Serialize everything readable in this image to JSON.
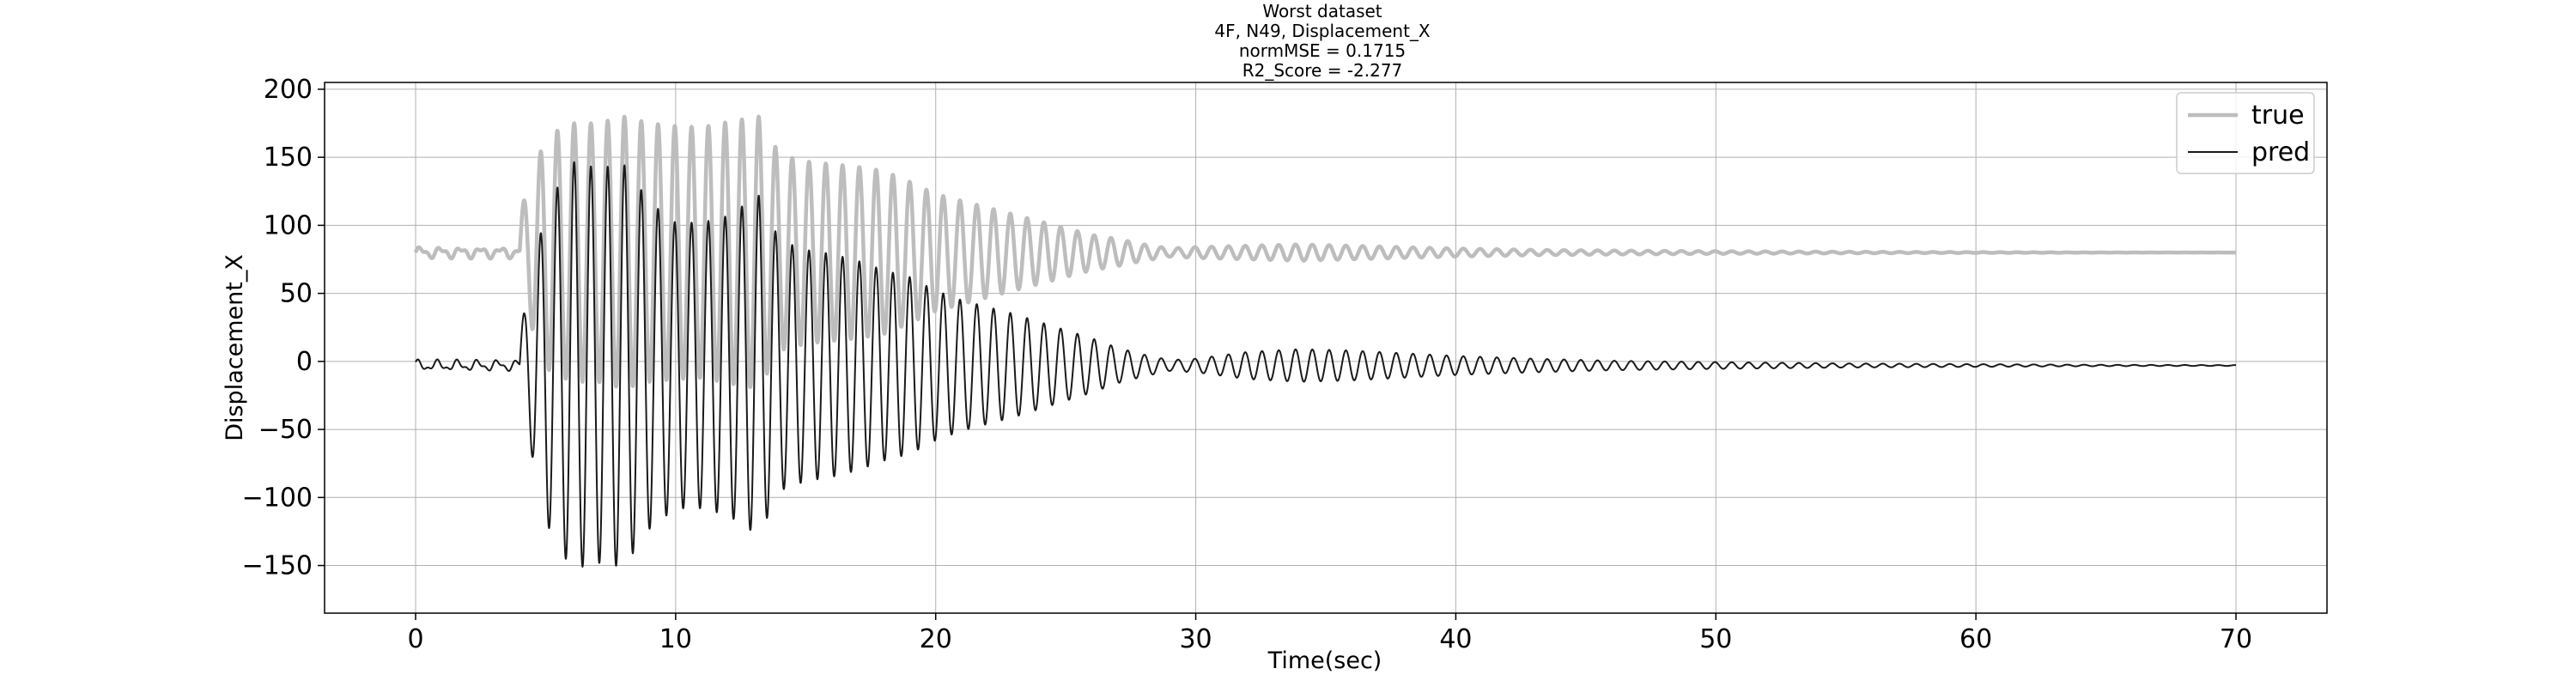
{
  "chart_data": {
    "type": "line",
    "title_lines": [
      "Worst dataset",
      "4F, N49, Displacement_X",
      "normMSE = 0.1715",
      "R2_Score = -2.277"
    ],
    "xlabel": "Time(sec)",
    "ylabel": "Displacement_X",
    "xlim": [
      -3.5,
      73.5
    ],
    "ylim": [
      -185,
      205
    ],
    "xticks": [
      0,
      10,
      20,
      30,
      40,
      50,
      60,
      70
    ],
    "yticks": [
      -150,
      -100,
      -50,
      0,
      50,
      100,
      150,
      200
    ],
    "grid": true,
    "legend_position": "top-right",
    "series": [
      {
        "name": "true",
        "color": "#bdbdbd",
        "offset": 80,
        "envelope": [
          [
            0,
            0
          ],
          [
            3.5,
            3
          ],
          [
            4.2,
            40
          ],
          [
            5,
            85
          ],
          [
            6,
            95
          ],
          [
            7,
            95
          ],
          [
            8,
            100
          ],
          [
            9,
            95
          ],
          [
            10,
            93
          ],
          [
            11,
            92
          ],
          [
            12,
            96
          ],
          [
            13.2,
            100
          ],
          [
            14,
            72
          ],
          [
            15,
            67
          ],
          [
            16,
            65
          ],
          [
            17,
            63
          ],
          [
            18,
            60
          ],
          [
            19,
            52
          ],
          [
            20,
            43
          ],
          [
            21,
            38
          ],
          [
            22,
            33
          ],
          [
            23,
            28
          ],
          [
            24,
            23
          ],
          [
            25,
            18
          ],
          [
            26,
            13
          ],
          [
            27,
            10
          ],
          [
            28,
            6
          ],
          [
            29,
            3
          ],
          [
            30,
            4
          ],
          [
            32,
            5
          ],
          [
            34,
            6
          ],
          [
            36,
            5
          ],
          [
            38,
            4
          ],
          [
            40,
            3
          ],
          [
            43,
            2
          ],
          [
            46,
            1.5
          ],
          [
            50,
            1
          ],
          [
            55,
            0.6
          ],
          [
            60,
            0.3
          ],
          [
            65,
            0.1
          ],
          [
            70,
            0
          ]
        ],
        "noise_until": 4,
        "frequency_hz": 1.55,
        "end_x": 70
      },
      {
        "name": "pred",
        "color": "#1a1a1a",
        "offset": -3,
        "envelope": [
          [
            0,
            0
          ],
          [
            3.5,
            4
          ],
          [
            4.2,
            40
          ],
          [
            5,
            115
          ],
          [
            6,
            150
          ],
          [
            7,
            145
          ],
          [
            8,
            148
          ],
          [
            9,
            120
          ],
          [
            10,
            105
          ],
          [
            11,
            105
          ],
          [
            12,
            110
          ],
          [
            13.2,
            125
          ],
          [
            14,
            92
          ],
          [
            15,
            85
          ],
          [
            16,
            82
          ],
          [
            17,
            77
          ],
          [
            18,
            70
          ],
          [
            19,
            65
          ],
          [
            20,
            55
          ],
          [
            21,
            48
          ],
          [
            22,
            43
          ],
          [
            23,
            38
          ],
          [
            24,
            32
          ],
          [
            25,
            26
          ],
          [
            26,
            20
          ],
          [
            27,
            13
          ],
          [
            28,
            8
          ],
          [
            29,
            4
          ],
          [
            30,
            5
          ],
          [
            32,
            10
          ],
          [
            34,
            12
          ],
          [
            36,
            11
          ],
          [
            38,
            9
          ],
          [
            40,
            7
          ],
          [
            43,
            5
          ],
          [
            46,
            3.5
          ],
          [
            50,
            2.5
          ],
          [
            55,
            1.5
          ],
          [
            60,
            1
          ],
          [
            65,
            0.5
          ],
          [
            70,
            0.3
          ]
        ],
        "noise_until": 4,
        "frequency_hz": 1.55,
        "end_x": 70
      }
    ]
  }
}
